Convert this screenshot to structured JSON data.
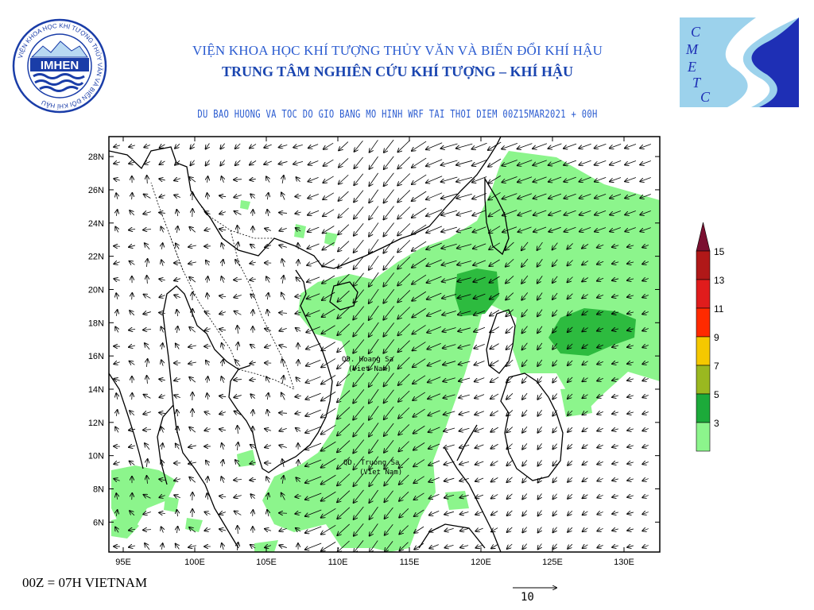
{
  "header": {
    "org_line1": "VIỆN KHOA HỌC KHÍ TƯỢNG THỦY VĂN VÀ BIẾN ĐỔI KHÍ HẬU",
    "org_line2": "TRUNG TÂM NGHIÊN CỨU KHÍ TƯỢNG – KHÍ HẬU",
    "product_title": "DU BAO HUONG VA TOC DO GIO BANG MO HINH WRF TAI THOI DIEM  00Z15MAR2021 + 00H"
  },
  "logo_left": {
    "ring_text": "VIỆN KHOA HỌC KHÍ TƯỢNG THỦY VĂN VÀ BIẾN ĐỔI KHÍ HẬU",
    "name": "IMHEN"
  },
  "logo_right": {
    "letters": [
      "C",
      "M",
      "E",
      "T",
      "C"
    ]
  },
  "map": {
    "lon_range": [
      94,
      132.5
    ],
    "lat_range": [
      4.2,
      29.2
    ],
    "x_ticks": [
      "95E",
      "100E",
      "105E",
      "110E",
      "115E",
      "120E",
      "125E",
      "130E"
    ],
    "y_ticks": [
      "6N",
      "8N",
      "10N",
      "12N",
      "14N",
      "16N",
      "18N",
      "20N",
      "22N",
      "24N",
      "26N",
      "28N"
    ],
    "place_labels": [
      {
        "line1": "QD. Hoang Sa",
        "line2": "(Viet Nam)"
      },
      {
        "line1": "QD. Truong Sa",
        "line2": "(Viet Nam)"
      }
    ]
  },
  "legend": {
    "levels": [
      "15",
      "13",
      "11",
      "9",
      "7",
      "5",
      "3"
    ],
    "colors": [
      "#b01818",
      "#e01c1c",
      "#ff2a00",
      "#f5c800",
      "#9ab820",
      "#1caa3a",
      "#8cf58c"
    ],
    "cap_color": "#7a1030"
  },
  "footer": {
    "timezone_note": "00Z = 07H VIETNAM",
    "reference_vector_label": "10"
  },
  "colors": {
    "title_blue": "#2a5bd0",
    "shade_light": "#8cf58c",
    "shade_dark": "#2dbb3f"
  }
}
